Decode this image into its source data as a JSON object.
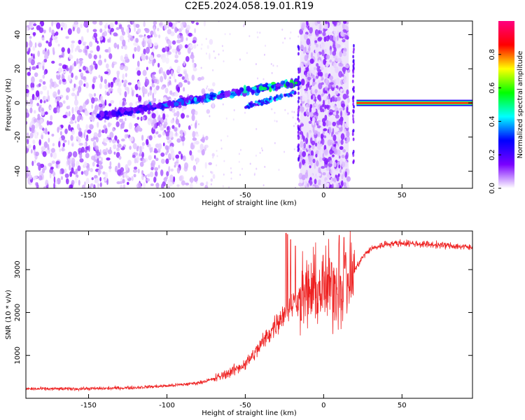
{
  "title": "C2E5.2024.058.19.01.R19",
  "chart_data": [
    {
      "type": "heatmap",
      "title": "C2E5.2024.058.19.01.R19",
      "xlabel": "Height of straight line (km)",
      "ylabel": "Frequency (Hz)",
      "xlim": [
        -190,
        95
      ],
      "ylim": [
        -50,
        48
      ],
      "x_ticks": [
        -150,
        -100,
        -50,
        0,
        50
      ],
      "y_ticks": [
        -40,
        -20,
        0,
        20,
        40
      ],
      "x_tick_labels": [
        "-150",
        "-100",
        "-50",
        "0",
        "50"
      ],
      "y_tick_labels": [
        "-40",
        "-20",
        "0",
        "20",
        "40"
      ],
      "grid": false,
      "colorbar": {
        "label": "Normalized spectral amplitude",
        "range": [
          0.0,
          1.0
        ],
        "ticks": [
          0.0,
          0.2,
          0.4,
          0.6,
          0.8
        ],
        "tick_labels": [
          "0.0",
          "0.2",
          "0.4",
          "0.6",
          "0.8"
        ],
        "colormap": [
          "#ffffff",
          "#7a00ff",
          "#0000ff",
          "#00ffff",
          "#00ff00",
          "#ffff00",
          "#ff0000",
          "#ff0080"
        ]
      },
      "features": {
        "noise_region_km": [
          -190,
          -85
        ],
        "drift_track_km": [
          -145,
          -15
        ],
        "drift_track_freq_hz": [
          -8,
          16
        ],
        "noise_band_km": [
          -15,
          16
        ],
        "spike_positions_km": [
          -16,
          19
        ],
        "steady_line_km": [
          21,
          95
        ],
        "steady_line_freq_hz": 0
      }
    },
    {
      "type": "line",
      "xlabel": "Height of straight line (km)",
      "ylabel": "SNR (10 * v/v)",
      "xlim": [
        -190,
        95
      ],
      "ylim": [
        0,
        3900
      ],
      "x_ticks": [
        -150,
        -100,
        -50,
        0,
        50
      ],
      "y_ticks": [
        1000,
        2000,
        3000
      ],
      "x_tick_labels": [
        "-150",
        "-100",
        "-50",
        "0",
        "50"
      ],
      "y_tick_labels": [
        "1000",
        "2000",
        "3000"
      ],
      "grid": false,
      "series": [
        {
          "color": "#ee2020",
          "x": [
            -190,
            -180,
            -170,
            -160,
            -150,
            -140,
            -130,
            -120,
            -110,
            -100,
            -90,
            -80,
            -70,
            -60,
            -50,
            -45,
            -40,
            -35,
            -30,
            -25,
            -20,
            -15,
            -10,
            -5,
            0,
            5,
            10,
            15,
            20,
            25,
            30,
            40,
            50,
            60,
            70,
            80,
            90,
            95
          ],
          "y": [
            220,
            220,
            220,
            220,
            225,
            230,
            240,
            250,
            270,
            290,
            320,
            360,
            450,
            600,
            800,
            1000,
            1250,
            1500,
            1750,
            2000,
            2200,
            2350,
            2450,
            2500,
            2550,
            2600,
            2650,
            2700,
            3000,
            3300,
            3480,
            3600,
            3620,
            3600,
            3580,
            3560,
            3530,
            3500
          ]
        }
      ],
      "spikes": [
        {
          "x": -24,
          "y": 3850
        },
        {
          "x": -23,
          "y": 3820
        },
        {
          "x": -21,
          "y": 3700
        },
        {
          "x": -18,
          "y": 3550
        },
        {
          "x": 10,
          "y": 3800
        },
        {
          "x": 13,
          "y": 3750
        },
        {
          "x": 14,
          "y": 3400
        }
      ]
    }
  ]
}
